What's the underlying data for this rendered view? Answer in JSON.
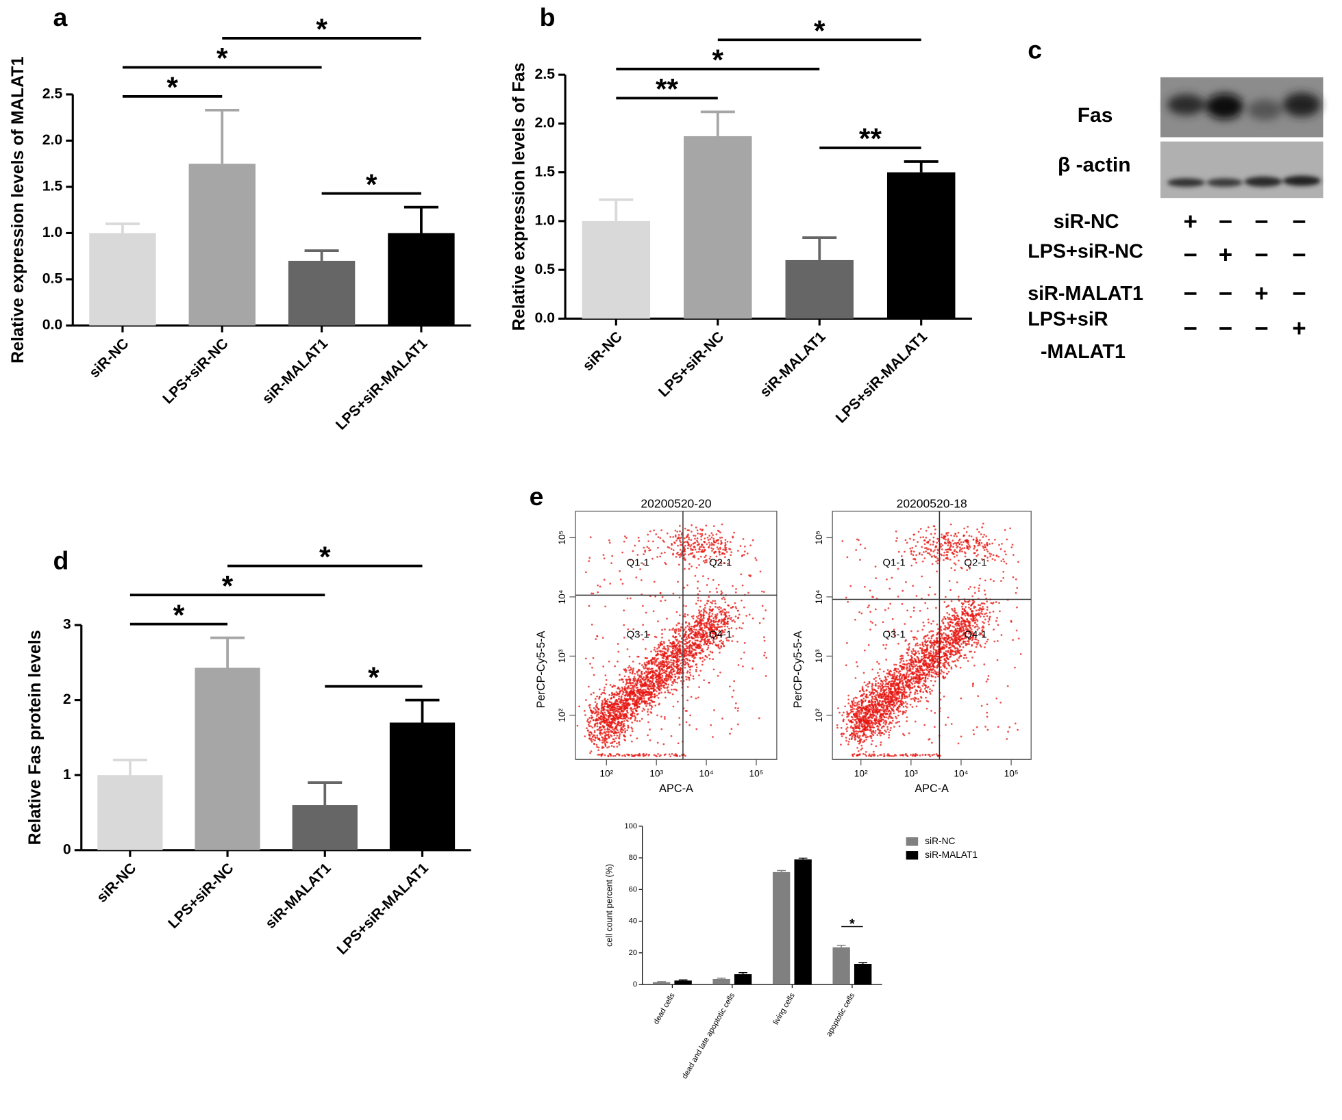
{
  "chart_data": [
    {
      "type": "bar",
      "label": "a",
      "ylabel": "Relative expression levels of MALAT1",
      "categories": [
        "siR-NC",
        "LPS+siR-NC",
        "siR-MALAT1",
        "LPS+siR-MALAT1"
      ],
      "values": [
        1.0,
        1.75,
        0.7,
        1.0
      ],
      "errors": [
        0.1,
        0.58,
        0.11,
        0.28
      ],
      "colors": [
        "#d9d9d9",
        "#a6a6a6",
        "#666666",
        "#000000"
      ],
      "ylim": [
        0,
        2.5
      ],
      "yticks": [
        {
          "value": 0,
          "label": "0.0"
        },
        0.5,
        {
          "value": 1,
          "label": "1.0"
        },
        1.5,
        {
          "value": 2,
          "label": "2.0"
        },
        2.5
      ],
      "significance": [
        {
          "from": "siR-MALAT1",
          "to": "LPS+siR-MALAT1",
          "label": "*"
        },
        {
          "from": "siR-NC",
          "to": "LPS+siR-NC",
          "label": "*"
        },
        {
          "from": "siR-NC",
          "to": "siR-MALAT1",
          "label": "*"
        },
        {
          "from": "LPS+siR-NC",
          "to": "LPS+siR-MALAT1",
          "label": "*"
        }
      ]
    },
    {
      "type": "bar",
      "label": "b",
      "ylabel": "Relative expression levels of  Fas",
      "categories": [
        "siR-NC",
        "LPS+siR-NC",
        "siR-MALAT1",
        "LPS+siR-MALAT1"
      ],
      "values": [
        1.0,
        1.87,
        0.6,
        1.5
      ],
      "errors": [
        0.22,
        0.25,
        0.23,
        0.11
      ],
      "colors": [
        "#d9d9d9",
        "#a6a6a6",
        "#666666",
        "#000000"
      ],
      "ylim": [
        0,
        2.5
      ],
      "yticks": [
        {
          "value": 0,
          "label": "0.0"
        },
        0.5,
        {
          "value": 1,
          "label": "1.0"
        },
        1.5,
        {
          "value": 2,
          "label": "2.0"
        },
        2.5
      ],
      "significance": [
        {
          "from": "siR-MALAT1",
          "to": "LPS+siR-MALAT1",
          "label": "**"
        },
        {
          "from": "siR-NC",
          "to": "LPS+siR-NC",
          "label": "**"
        },
        {
          "from": "siR-NC",
          "to": "siR-MALAT1",
          "label": "*"
        },
        {
          "from": "LPS+siR-NC",
          "to": "LPS+siR-MALAT1",
          "label": "*"
        }
      ]
    },
    {
      "type": "bar",
      "label": "d",
      "ylabel": "Relative Fas protein levels",
      "categories": [
        "siR-NC",
        "LPS+siR-NC",
        "siR-MALAT1",
        "LPS+siR-MALAT1"
      ],
      "values": [
        1.0,
        2.43,
        0.6,
        1.7
      ],
      "errors": [
        0.2,
        0.4,
        0.3,
        0.3
      ],
      "colors": [
        "#d9d9d9",
        "#a6a6a6",
        "#666666",
        "#000000"
      ],
      "ylim": [
        0,
        3
      ],
      "yticks": [
        0,
        1,
        2,
        3
      ],
      "significance": [
        {
          "from": "siR-MALAT1",
          "to": "LPS+siR-MALAT1",
          "label": "*"
        },
        {
          "from": "siR-NC",
          "to": "LPS+siR-NC",
          "label": "*"
        },
        {
          "from": "siR-NC",
          "to": "siR-MALAT1",
          "label": "*"
        },
        {
          "from": "LPS+siR-NC",
          "to": "LPS+siR-MALAT1",
          "label": "*"
        }
      ]
    },
    {
      "type": "scatter",
      "title": "20200520-20",
      "xlabel": "APC-A",
      "ylabel": "PerCP-Cy5-5-A",
      "log_scale": true,
      "xlim": [
        24,
        257000
      ],
      "ylim": [
        18,
        280000
      ],
      "xticks": [
        {
          "value": 100,
          "label": "10²"
        },
        {
          "value": 1000,
          "label": "10³"
        },
        {
          "value": 10000,
          "label": "10⁴"
        },
        {
          "value": 100000,
          "label": "10⁵"
        }
      ],
      "yticks": [
        {
          "value": 100,
          "label": "10²"
        },
        {
          "value": 1000,
          "label": "10³"
        },
        {
          "value": 10000,
          "label": "10⁴"
        },
        {
          "value": 100000,
          "label": "10⁵"
        }
      ],
      "gate": {
        "x": 3400,
        "y": 10700
      },
      "quadrants": [
        "Q1-1",
        "Q2-1",
        "Q3-1",
        "Q4-1"
      ]
    },
    {
      "type": "scatter",
      "title": "20200520-18",
      "xlabel": "APC-A",
      "ylabel": "PerCP-Cy5-5-A",
      "log_scale": true,
      "xlim": [
        27,
        250000
      ],
      "ylim": [
        18,
        280000
      ],
      "xticks": [
        {
          "value": 100,
          "label": "10²"
        },
        {
          "value": 1000,
          "label": "10³"
        },
        {
          "value": 10000,
          "label": "10⁴"
        },
        {
          "value": 100000,
          "label": "10⁵"
        }
      ],
      "yticks": [
        {
          "value": 100,
          "label": "10²"
        },
        {
          "value": 1000,
          "label": "10³"
        },
        {
          "value": 10000,
          "label": "10⁴"
        },
        {
          "value": 100000,
          "label": "10⁵"
        }
      ],
      "gate": {
        "x": 3700,
        "y": 9100
      },
      "quadrants": [
        "Q1-1",
        "Q2-1",
        "Q3-1",
        "Q4-1"
      ]
    },
    {
      "type": "bar",
      "label": "e",
      "ylabel": "cell count percent (%)",
      "categories": [
        "dead cells",
        "dead and late apoptotic cells",
        "living cells",
        "apoptotic cells"
      ],
      "series": [
        {
          "name": "siR-NC",
          "color": "#808080",
          "values": [
            1.5,
            3.5,
            71,
            23.5
          ],
          "errors": [
            0.3,
            0.5,
            1,
            1.2
          ]
        },
        {
          "name": "siR-MALAT1",
          "color": "#000000",
          "values": [
            2.5,
            6.5,
            79,
            13
          ],
          "errors": [
            0.4,
            1,
            0.8,
            0.8
          ]
        }
      ],
      "ylim": [
        0,
        100
      ],
      "yticks": [
        0,
        20,
        40,
        60,
        80,
        100
      ],
      "significance": [
        {
          "category": "apoptotic cells",
          "label": "*"
        }
      ]
    }
  ],
  "blot": {
    "label": "c",
    "bands": [
      "Fas",
      "β -actin"
    ],
    "rows": [
      {
        "label": [
          "siR-NC"
        ],
        "signs": [
          "+",
          "−",
          "−",
          "−"
        ]
      },
      {
        "label": [
          "LPS+siR-NC"
        ],
        "signs": [
          "−",
          "+",
          "−",
          "−"
        ]
      },
      {
        "label": [
          "siR-MALAT1"
        ],
        "signs": [
          "−",
          "−",
          "+",
          "−"
        ]
      },
      {
        "label": [
          "LPS+siR",
          "-MALAT1"
        ],
        "signs": [
          "−",
          "−",
          "−",
          "+"
        ]
      }
    ]
  }
}
